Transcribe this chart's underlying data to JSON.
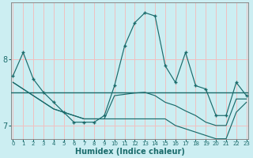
{
  "xlabel": "Humidex (Indice chaleur)",
  "background_color": "#cceef2",
  "grid_color": "#f0c0c0",
  "line_color": "#1a6b6b",
  "x_data": [
    0,
    1,
    2,
    3,
    4,
    5,
    6,
    7,
    8,
    9,
    10,
    11,
    12,
    13,
    14,
    15,
    16,
    17,
    18,
    19,
    20,
    21,
    22,
    23
  ],
  "line1_main": [
    7.75,
    8.1,
    7.7,
    7.5,
    7.35,
    7.2,
    7.05,
    7.05,
    7.05,
    7.15,
    7.6,
    8.2,
    8.55,
    8.7,
    8.65,
    7.9,
    7.65,
    8.1,
    7.6,
    7.55,
    7.15,
    7.15,
    7.65,
    7.45
  ],
  "line2_diag": [
    7.65,
    7.55,
    7.45,
    7.35,
    7.25,
    7.2,
    7.15,
    7.1,
    7.1,
    7.1,
    7.45,
    7.47,
    7.49,
    7.5,
    7.45,
    7.35,
    7.3,
    7.22,
    7.15,
    7.05,
    7.0,
    7.0,
    7.4,
    7.4
  ],
  "line3_diag": [
    7.65,
    7.55,
    7.45,
    7.35,
    7.25,
    7.2,
    7.15,
    7.1,
    7.1,
    7.1,
    7.1,
    7.1,
    7.1,
    7.1,
    7.1,
    7.1,
    7.0,
    6.95,
    6.9,
    6.85,
    6.8,
    6.8,
    7.2,
    7.35
  ],
  "hline_y": 7.5,
  "ylim": [
    6.8,
    8.85
  ],
  "xlim": [
    -0.2,
    23.2
  ],
  "yticks": [
    7,
    8
  ],
  "xticks": [
    0,
    1,
    2,
    3,
    4,
    5,
    6,
    7,
    8,
    9,
    10,
    11,
    12,
    13,
    14,
    15,
    16,
    17,
    18,
    19,
    20,
    21,
    22,
    23
  ]
}
